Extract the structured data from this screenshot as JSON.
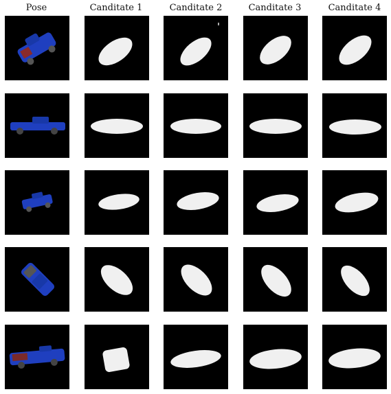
{
  "columns": [
    "Pose",
    "Canditate 1",
    "Canditate 2",
    "Canditate 3",
    "Canditate 4"
  ],
  "rows": [
    {
      "pose_view": "three-quarter front, blue pickup",
      "candidates": [
        "tilted blob",
        "tilted blob",
        "tilted blob",
        "tilted blob"
      ]
    },
    {
      "pose_view": "side profile, blue pickup",
      "candidates": [
        "long flat blob",
        "long flat blob",
        "long flat blob",
        "long flat blob"
      ]
    },
    {
      "pose_view": "low angle, blue pickup",
      "candidates": [
        "small oval blob",
        "small oval blob",
        "small oval blob",
        "small oval blob"
      ]
    },
    {
      "pose_view": "top-down diagonal, blue pickup",
      "candidates": [
        "diagonal blob",
        "diagonal blob",
        "diagonal blob",
        "diagonal blob"
      ]
    },
    {
      "pose_view": "side rear three-quarter, blue pickup",
      "candidates": [
        "square blob",
        "long blob",
        "long blob",
        "long blob"
      ]
    }
  ],
  "colors": {
    "tile_background": "#000000",
    "silhouette": "#f0f0f0",
    "truck_blue": "#1f3fbf"
  }
}
